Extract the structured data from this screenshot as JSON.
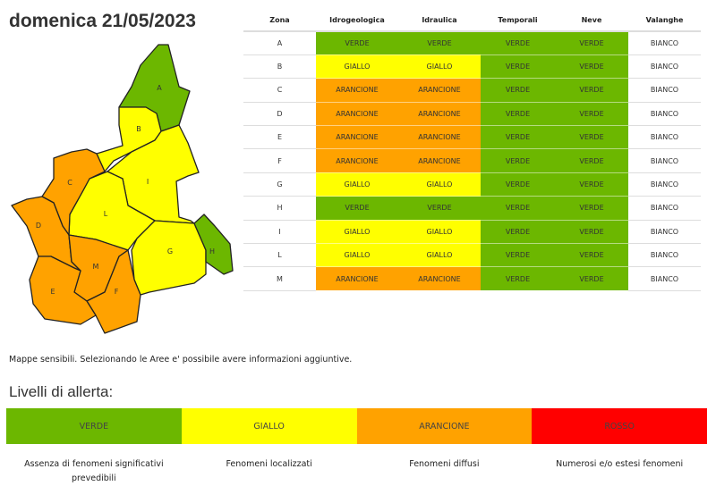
{
  "title": "domenica 21/05/2023",
  "colors": {
    "VERDE": "#6cb700",
    "GIALLO": "#ffff00",
    "ARANCIONE": "#ffa200",
    "ROSSO": "#ff0000",
    "BIANCO": "#ffffff"
  },
  "table": {
    "headers": [
      "Zona",
      "Idrogeologica",
      "Idraulica",
      "Temporali",
      "Neve",
      "Valanghe"
    ],
    "rows": [
      [
        "A",
        "VERDE",
        "VERDE",
        "VERDE",
        "VERDE",
        "BIANCO"
      ],
      [
        "B",
        "GIALLO",
        "GIALLO",
        "VERDE",
        "VERDE",
        "BIANCO"
      ],
      [
        "C",
        "ARANCIONE",
        "ARANCIONE",
        "VERDE",
        "VERDE",
        "BIANCO"
      ],
      [
        "D",
        "ARANCIONE",
        "ARANCIONE",
        "VERDE",
        "VERDE",
        "BIANCO"
      ],
      [
        "E",
        "ARANCIONE",
        "ARANCIONE",
        "VERDE",
        "VERDE",
        "BIANCO"
      ],
      [
        "F",
        "ARANCIONE",
        "ARANCIONE",
        "VERDE",
        "VERDE",
        "BIANCO"
      ],
      [
        "G",
        "GIALLO",
        "GIALLO",
        "VERDE",
        "VERDE",
        "BIANCO"
      ],
      [
        "H",
        "VERDE",
        "VERDE",
        "VERDE",
        "VERDE",
        "BIANCO"
      ],
      [
        "I",
        "GIALLO",
        "GIALLO",
        "VERDE",
        "VERDE",
        "BIANCO"
      ],
      [
        "L",
        "GIALLO",
        "GIALLO",
        "VERDE",
        "VERDE",
        "BIANCO"
      ],
      [
        "M",
        "ARANCIONE",
        "ARANCIONE",
        "VERDE",
        "VERDE",
        "BIANCO"
      ]
    ]
  },
  "map": {
    "zones": [
      {
        "id": "A",
        "level": "VERDE"
      },
      {
        "id": "B",
        "level": "GIALLO"
      },
      {
        "id": "I",
        "level": "GIALLO"
      },
      {
        "id": "L",
        "level": "GIALLO"
      },
      {
        "id": "G",
        "level": "GIALLO"
      },
      {
        "id": "H",
        "level": "VERDE"
      },
      {
        "id": "C",
        "level": "ARANCIONE"
      },
      {
        "id": "D",
        "level": "ARANCIONE"
      },
      {
        "id": "M",
        "level": "ARANCIONE"
      },
      {
        "id": "F",
        "level": "ARANCIONE"
      },
      {
        "id": "E",
        "level": "ARANCIONE"
      }
    ]
  },
  "note": "Mappe sensibili. Selezionando le Aree e' possibile avere informazioni aggiuntive.",
  "legend": {
    "title": "Livelli di allerta:",
    "levels": [
      {
        "label": "VERDE",
        "desc": "Assenza di fenomeni significativi prevedibili"
      },
      {
        "label": "GIALLO",
        "desc": "Fenomeni localizzati"
      },
      {
        "label": "ARANCIONE",
        "desc": "Fenomeni diffusi"
      },
      {
        "label": "ROSSO",
        "desc": "Numerosi e/o estesi fenomeni"
      }
    ]
  }
}
